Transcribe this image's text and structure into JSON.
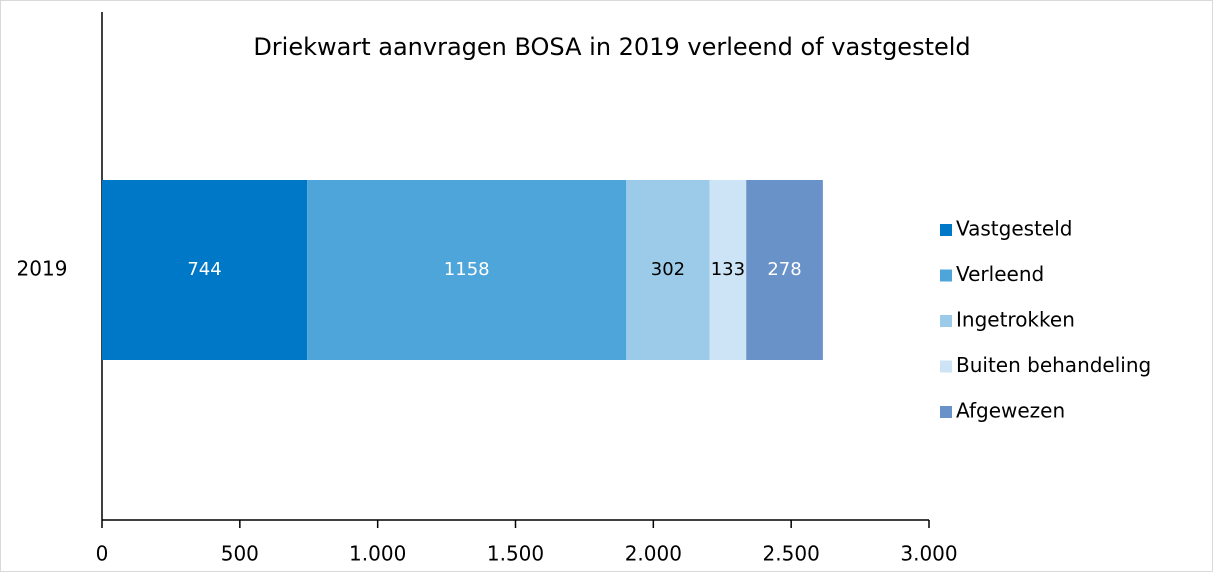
{
  "chart_data": {
    "type": "stacked-bar-horizontal",
    "title": "Driekwart aanvragen BOSA in 2019 verleend of vastgesteld",
    "categories": [
      "2019"
    ],
    "series": [
      {
        "name": "Vastgesteld",
        "color": "#0078c8",
        "values": [
          744
        ]
      },
      {
        "name": "Verleend",
        "color": "#4ea5da",
        "values": [
          1158
        ]
      },
      {
        "name": "Ingetrokken",
        "color": "#9ccbe9",
        "values": [
          302
        ]
      },
      {
        "name": "Buiten behandeling",
        "color": "#cce4f5",
        "values": [
          133
        ]
      },
      {
        "name": "Afgewezen",
        "color": "#6892c8",
        "values": [
          278
        ]
      }
    ],
    "xlim": [
      0,
      3000
    ],
    "xticks": [
      0,
      500,
      {
        "value": 1000,
        "label": "1.000"
      },
      {
        "value": 1500,
        "label": "1.500"
      },
      {
        "value": 2000,
        "label": "2.000"
      },
      {
        "value": 2500,
        "label": "2.500"
      },
      {
        "value": 3000,
        "label": "3.000"
      }
    ],
    "legend": "right"
  }
}
